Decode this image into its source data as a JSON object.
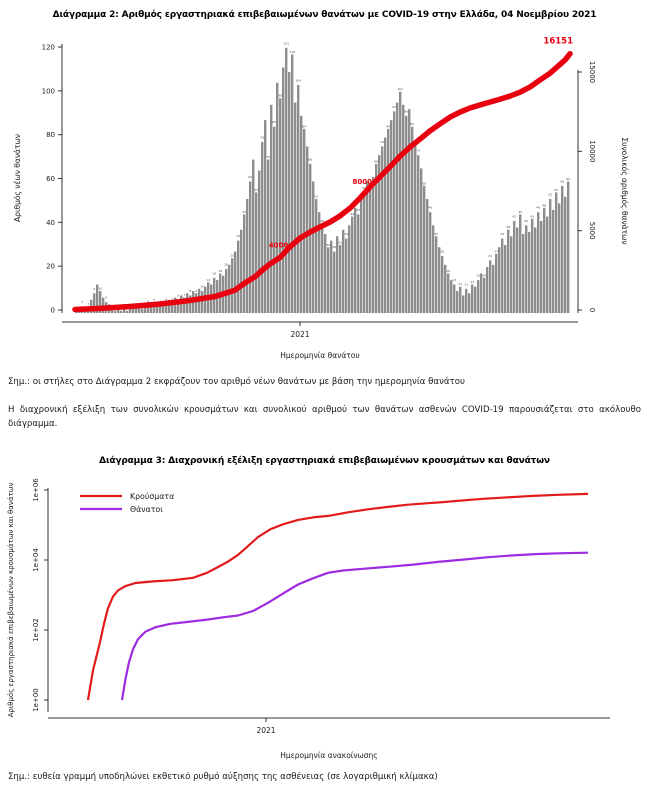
{
  "page": {
    "note1": "Σημ.: οι στήλες στο Διάγραμμα 2 εκφράζουν τον αριθμό νέων θανάτων με βάση την ημερομηνία θανάτου",
    "paragraph": "Η διαχρονική εξέλιξη των συνολικών κρουσμάτων και συνολικού αριθμού των θανάτων ασθενών COVID-19 παρουσιάζεται στο ακόλουθο διάγραμμα.",
    "note2": "Σημ.: ευθεία γραμμή υποδηλώνει εκθετικό ρυθμό αύξησης της ασθένειας (σε λογαριθμική κλίμακα)"
  },
  "colors": {
    "bar": "#8d8d8d",
    "bar_label": "#4a4a4a",
    "cumulative_line": "#e8000e",
    "cases_line": "#e31a1c",
    "deaths_line": "#9c2be2",
    "axis": "#333333",
    "tick_text": "#1a1a1a"
  },
  "chart_data": [
    {
      "type": "bar",
      "title": "Διάγραμμα 2: Αριθμός εργαστηριακά επιβεβαιωμένων θανάτων με COVID-19 στην Ελλάδα, 04 Νοεμβρίου 2021",
      "xlabel": "Ημερομηνία θανάτου",
      "ylabel_left": "Αριθμός νέων θανάτων",
      "ylabel_right": "Συνολικός αριθμός θανάτων",
      "x_ticks": [
        "2021"
      ],
      "y_left_ticks": [
        0,
        20,
        40,
        60,
        80,
        100,
        120
      ],
      "ylim_left": [
        0,
        120
      ],
      "y_right_ticks": [
        0,
        5000,
        10000,
        15000
      ],
      "ylim_right": [
        0,
        15000
      ],
      "grid": false,
      "milestones": [
        {
          "v": 4000,
          "label": "4000"
        },
        {
          "v": 8000,
          "label": "8000"
        }
      ],
      "end_label": "16151",
      "daily_deaths": [
        1,
        2,
        3,
        2,
        3,
        6,
        9,
        13,
        10,
        7,
        5,
        4,
        2,
        1,
        2,
        1,
        2,
        1,
        2,
        2,
        2,
        3,
        2,
        3,
        4,
        3,
        4,
        3,
        4,
        5,
        4,
        6,
        5,
        7,
        6,
        8,
        7,
        9,
        8,
        10,
        9,
        11,
        10,
        12,
        14,
        13,
        16,
        15,
        18,
        17,
        20,
        22,
        25,
        28,
        33,
        38,
        45,
        52,
        60,
        70,
        55,
        65,
        78,
        88,
        70,
        95,
        85,
        105,
        98,
        112,
        121,
        110,
        118,
        96,
        104,
        90,
        84,
        76,
        68,
        60,
        52,
        46,
        40,
        36,
        30,
        33,
        28,
        35,
        31,
        38,
        34,
        40,
        44,
        48,
        45,
        52,
        56,
        60,
        57,
        62,
        68,
        72,
        76,
        80,
        84,
        88,
        92,
        96,
        101,
        95,
        90,
        93,
        85,
        78,
        72,
        66,
        58,
        52,
        46,
        40,
        35,
        30,
        26,
        22,
        18,
        15,
        13,
        10,
        12,
        8,
        11,
        9,
        13,
        12,
        15,
        18,
        16,
        21,
        24,
        22,
        27,
        30,
        34,
        31,
        38,
        35,
        42,
        39,
        45,
        36,
        40,
        37,
        43,
        39,
        46,
        42,
        48,
        44,
        52,
        47,
        55,
        50,
        58,
        53,
        60
      ],
      "cumulative": [
        [
          0.0,
          30
        ],
        [
          0.051,
          100
        ],
        [
          0.111,
          220
        ],
        [
          0.172,
          380
        ],
        [
          0.232,
          600
        ],
        [
          0.283,
          850
        ],
        [
          0.323,
          1250
        ],
        [
          0.343,
          1700
        ],
        [
          0.364,
          2100
        ],
        [
          0.378,
          2500
        ],
        [
          0.394,
          2900
        ],
        [
          0.414,
          3300
        ],
        [
          0.434,
          3970
        ],
        [
          0.455,
          4540
        ],
        [
          0.475,
          4910
        ],
        [
          0.495,
          5230
        ],
        [
          0.515,
          5540
        ],
        [
          0.535,
          5920
        ],
        [
          0.556,
          6430
        ],
        [
          0.576,
          7060
        ],
        [
          0.596,
          7750
        ],
        [
          0.616,
          8380
        ],
        [
          0.636,
          9010
        ],
        [
          0.657,
          9700
        ],
        [
          0.677,
          10270
        ],
        [
          0.697,
          10770
        ],
        [
          0.717,
          11280
        ],
        [
          0.737,
          11720
        ],
        [
          0.758,
          12160
        ],
        [
          0.778,
          12470
        ],
        [
          0.798,
          12730
        ],
        [
          0.818,
          12920
        ],
        [
          0.838,
          13100
        ],
        [
          0.859,
          13290
        ],
        [
          0.879,
          13480
        ],
        [
          0.899,
          13730
        ],
        [
          0.919,
          14050
        ],
        [
          0.939,
          14490
        ],
        [
          0.96,
          14930
        ],
        [
          0.976,
          15370
        ],
        [
          0.99,
          15750
        ],
        [
          1.0,
          16151
        ]
      ]
    },
    {
      "type": "line",
      "title": "Διάγραμμα 3: Διαχρονική εξέλιξη εργαστηριακά επιβεβαιωμένων κρουσμάτων και θανάτων",
      "xlabel": "Ημερομηνία ανακοίνωσης",
      "ylabel": "Αριθμός εργαστηριακά επιβεβαιωμένων κρουσμάτων και θανάτων",
      "x_ticks": [
        "2021"
      ],
      "y_scale": "log",
      "y_ticks": [
        {
          "v": 1,
          "label": "1e+00"
        },
        {
          "v": 100,
          "label": "1e+02"
        },
        {
          "v": 10000,
          "label": "1e+04"
        },
        {
          "v": 1000000,
          "label": "1e+06"
        }
      ],
      "legend_position": "top-left",
      "series": [
        {
          "name": "Κρούσματα",
          "color": "#e31a1c",
          "points": [
            [
              0.0,
              1
            ],
            [
              0.01,
              7
            ],
            [
              0.024,
              45
            ],
            [
              0.032,
              150
            ],
            [
              0.04,
              420
            ],
            [
              0.05,
              900
            ],
            [
              0.06,
              1350
            ],
            [
              0.075,
              1800
            ],
            [
              0.095,
              2200
            ],
            [
              0.13,
              2450
            ],
            [
              0.17,
              2650
            ],
            [
              0.21,
              3100
            ],
            [
              0.238,
              4300
            ],
            [
              0.262,
              6500
            ],
            [
              0.28,
              9000
            ],
            [
              0.3,
              14000
            ],
            [
              0.32,
              25000
            ],
            [
              0.34,
              45000
            ],
            [
              0.365,
              76000
            ],
            [
              0.39,
              105000
            ],
            [
              0.42,
              140000
            ],
            [
              0.45,
              165000
            ],
            [
              0.485,
              185000
            ],
            [
              0.52,
              230000
            ],
            [
              0.56,
              280000
            ],
            [
              0.6,
              330000
            ],
            [
              0.64,
              380000
            ],
            [
              0.68,
              420000
            ],
            [
              0.71,
              450000
            ],
            [
              0.74,
              490000
            ],
            [
              0.79,
              560000
            ],
            [
              0.84,
              620000
            ],
            [
              0.89,
              680000
            ],
            [
              0.94,
              730000
            ],
            [
              1.0,
              775000
            ]
          ]
        },
        {
          "name": "Θάνατοι",
          "color": "#9c2be2",
          "points": [
            [
              0.068,
              1
            ],
            [
              0.075,
              4
            ],
            [
              0.082,
              12
            ],
            [
              0.09,
              28
            ],
            [
              0.1,
              55
            ],
            [
              0.115,
              90
            ],
            [
              0.135,
              120
            ],
            [
              0.165,
              150
            ],
            [
              0.2,
              170
            ],
            [
              0.24,
              200
            ],
            [
              0.27,
              230
            ],
            [
              0.3,
              260
            ],
            [
              0.33,
              350
            ],
            [
              0.36,
              600
            ],
            [
              0.39,
              1100
            ],
            [
              0.42,
              2000
            ],
            [
              0.45,
              3000
            ],
            [
              0.48,
              4300
            ],
            [
              0.51,
              5000
            ],
            [
              0.55,
              5600
            ],
            [
              0.6,
              6400
            ],
            [
              0.65,
              7400
            ],
            [
              0.7,
              8800
            ],
            [
              0.75,
              10300
            ],
            [
              0.8,
              12000
            ],
            [
              0.85,
              13500
            ],
            [
              0.9,
              14800
            ],
            [
              0.95,
              15600
            ],
            [
              1.0,
              16151
            ]
          ]
        }
      ]
    }
  ]
}
